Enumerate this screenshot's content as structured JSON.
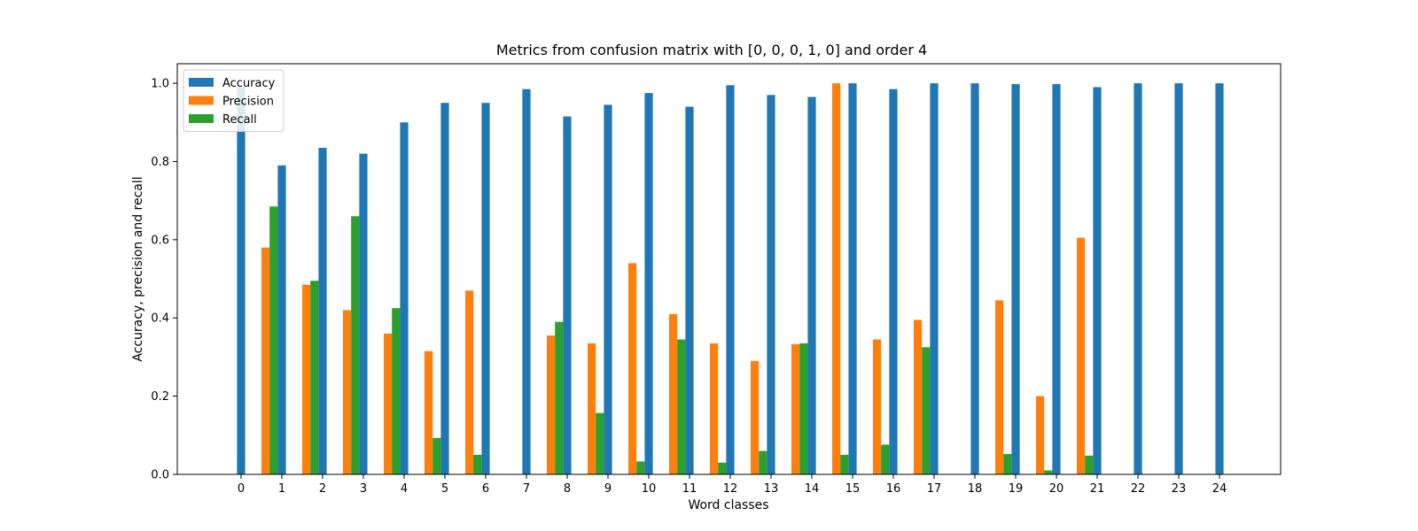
{
  "chart_data": {
    "type": "bar",
    "title": "Metrics from confusion matrix with [0, 0, 0, 1, 0] and order 4",
    "xlabel": "Word classes",
    "ylabel": "Accuracy, precision and recall",
    "categories": [
      "0",
      "1",
      "2",
      "3",
      "4",
      "5",
      "6",
      "7",
      "8",
      "9",
      "10",
      "11",
      "12",
      "13",
      "14",
      "15",
      "16",
      "17",
      "18",
      "19",
      "20",
      "21",
      "22",
      "23",
      "24"
    ],
    "ylim": [
      0,
      1.05
    ],
    "yticks": [
      "0.0",
      "0.2",
      "0.4",
      "0.6",
      "0.8",
      "1.0"
    ],
    "ytick_values": [
      0,
      0.2,
      0.4,
      0.6,
      0.8,
      1.0
    ],
    "grid": false,
    "legend_position": "top-left",
    "series": [
      {
        "name": "Accuracy",
        "color": "#1f77b4",
        "values": [
          0.99,
          0.79,
          0.835,
          0.82,
          0.9,
          0.95,
          0.95,
          0.985,
          0.915,
          0.945,
          0.975,
          0.94,
          0.995,
          0.97,
          0.965,
          1.0,
          0.985,
          1.0,
          1.0,
          0.998,
          0.998,
          0.99,
          1.0,
          1.0,
          1.0
        ]
      },
      {
        "name": "Precision",
        "color": "#ff7f0e",
        "values": [
          0,
          0.58,
          0.485,
          0.42,
          0.36,
          0.315,
          0.47,
          0,
          0.355,
          0.335,
          0.54,
          0.41,
          0.335,
          0.29,
          0.333,
          1.0,
          0.345,
          0.395,
          0,
          0.445,
          0.2,
          0.605,
          0,
          0,
          0
        ]
      },
      {
        "name": "Recall",
        "color": "#2ca02c",
        "values": [
          0,
          0.685,
          0.495,
          0.66,
          0.425,
          0.093,
          0.05,
          0,
          0.39,
          0.157,
          0.033,
          0.345,
          0.03,
          0.06,
          0.335,
          0.05,
          0.076,
          0.325,
          0,
          0.052,
          0.01,
          0.048,
          0,
          0,
          0
        ]
      }
    ]
  }
}
